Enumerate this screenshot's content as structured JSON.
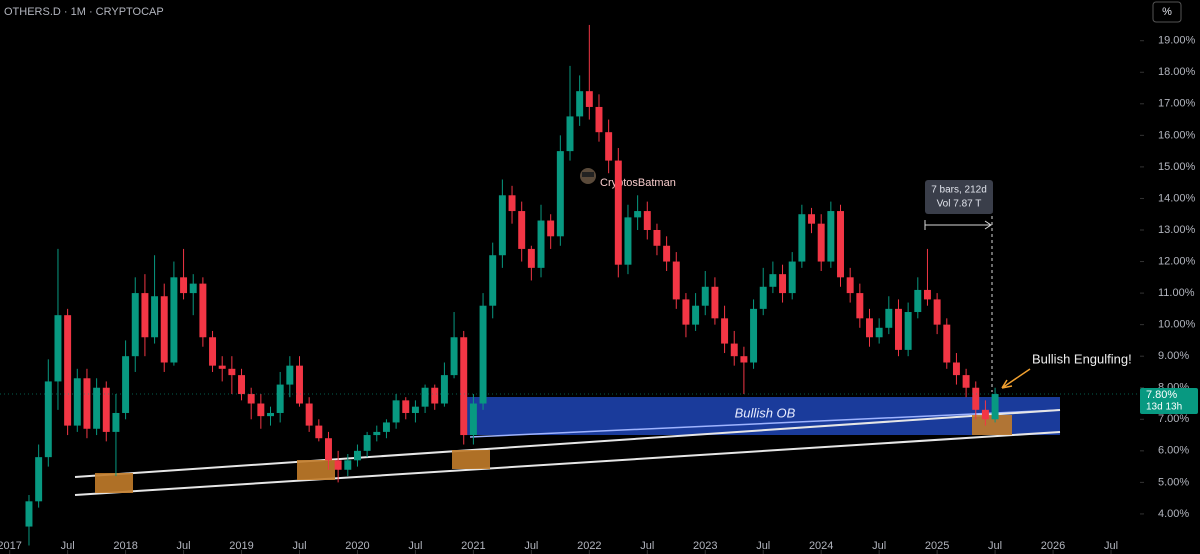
{
  "chart_data": {
    "type": "candlestick",
    "title": "OTHERS.D · 1M · CRYPTOCAP",
    "scale_button": "%",
    "up_color": "#089981",
    "down_color": "#f23645",
    "x": [
      "2017-03",
      "2017-04",
      "2017-05",
      "2017-06",
      "2017-07",
      "2017-08",
      "2017-09",
      "2017-10",
      "2017-11",
      "2017-12",
      "2018-01",
      "2018-02",
      "2018-03",
      "2018-04",
      "2018-05",
      "2018-06",
      "2018-07",
      "2018-08",
      "2018-09",
      "2018-10",
      "2018-11",
      "2018-12",
      "2019-01",
      "2019-02",
      "2019-03",
      "2019-04",
      "2019-05",
      "2019-06",
      "2019-07",
      "2019-08",
      "2019-09",
      "2019-10",
      "2019-11",
      "2019-12",
      "2020-01",
      "2020-02",
      "2020-03",
      "2020-04",
      "2020-05",
      "2020-06",
      "2020-07",
      "2020-08",
      "2020-09",
      "2020-10",
      "2020-11",
      "2020-12",
      "2021-01",
      "2021-02",
      "2021-03",
      "2021-04",
      "2021-05",
      "2021-06",
      "2021-07",
      "2021-08",
      "2021-09",
      "2021-10",
      "2021-11",
      "2021-12",
      "2022-01",
      "2022-02",
      "2022-03",
      "2022-04",
      "2022-05",
      "2022-06",
      "2022-07",
      "2022-08",
      "2022-09",
      "2022-10",
      "2022-11",
      "2022-12",
      "2023-01",
      "2023-02",
      "2023-03",
      "2023-04",
      "2023-05",
      "2023-06",
      "2023-07",
      "2023-08",
      "2023-09",
      "2023-10",
      "2023-11",
      "2023-12",
      "2024-01",
      "2024-02",
      "2024-03",
      "2024-04",
      "2024-05",
      "2024-06",
      "2024-07",
      "2024-08",
      "2024-09",
      "2024-10",
      "2024-11",
      "2024-12",
      "2025-01",
      "2025-02",
      "2025-03",
      "2025-04",
      "2025-05",
      "2025-06",
      "2025-07"
    ],
    "open": [
      3.6,
      4.4,
      5.8,
      8.2,
      10.3,
      6.8,
      8.3,
      6.7,
      8.0,
      6.6,
      7.2,
      9.0,
      11.0,
      9.6,
      10.9,
      8.8,
      11.5,
      11.0,
      11.3,
      9.6,
      8.7,
      8.6,
      8.4,
      7.8,
      7.5,
      7.1,
      7.2,
      8.1,
      8.7,
      7.5,
      6.8,
      6.4,
      5.7,
      5.4,
      5.7,
      6.0,
      6.5,
      6.6,
      6.9,
      7.6,
      7.2,
      7.4,
      8.0,
      7.5,
      8.4,
      9.6,
      6.5,
      7.5,
      10.6,
      12.2,
      14.1,
      13.6,
      12.4,
      11.8,
      13.3,
      12.8,
      15.5,
      16.6,
      17.4,
      16.9,
      16.1,
      15.2,
      11.9,
      13.4,
      13.6,
      13.0,
      12.5,
      12.0,
      10.8,
      10.0,
      10.6,
      11.2,
      10.2,
      9.4,
      9.0,
      8.8,
      10.5,
      11.2,
      11.6,
      11.0,
      12.0,
      13.5,
      13.2,
      12.0,
      13.6,
      11.5,
      11.0,
      10.2,
      9.6,
      9.9,
      10.5,
      9.2,
      10.4,
      11.1,
      10.8,
      10.0,
      8.8,
      8.4,
      8.0,
      7.3,
      7.0
    ],
    "high": [
      4.6,
      6.2,
      8.9,
      12.4,
      10.5,
      8.6,
      8.6,
      8.3,
      8.2,
      7.8,
      9.5,
      11.5,
      11.6,
      12.2,
      11.3,
      12.0,
      12.4,
      11.6,
      11.5,
      9.8,
      9.0,
      9.0,
      8.6,
      8.0,
      7.8,
      7.4,
      8.5,
      9.0,
      9.0,
      7.7,
      7.0,
      6.6,
      6.0,
      5.9,
      6.2,
      6.6,
      6.8,
      7.0,
      7.8,
      7.7,
      7.6,
      8.1,
      8.1,
      8.8,
      10.4,
      9.8,
      7.8,
      11.0,
      12.6,
      14.6,
      14.4,
      13.9,
      12.5,
      13.8,
      13.5,
      16.0,
      18.2,
      17.9,
      19.5,
      17.3,
      16.5,
      15.6,
      13.8,
      14.1,
      13.9,
      13.2,
      12.8,
      12.3,
      11.0,
      11.0,
      11.7,
      11.5,
      10.6,
      9.8,
      9.3,
      10.8,
      11.8,
      12.0,
      11.9,
      12.3,
      13.8,
      13.7,
      13.5,
      13.9,
      13.8,
      11.8,
      11.3,
      10.5,
      10.2,
      10.9,
      10.8,
      10.7,
      11.5,
      12.4,
      11.0,
      10.2,
      9.1,
      8.6,
      8.2,
      7.6,
      8.0
    ],
    "low": [
      3.0,
      4.2,
      5.5,
      7.3,
      6.5,
      6.6,
      6.4,
      6.5,
      6.3,
      5.2,
      7.0,
      8.5,
      9.0,
      9.4,
      8.5,
      8.7,
      10.8,
      10.3,
      9.3,
      8.5,
      8.2,
      7.8,
      7.6,
      7.0,
      6.7,
      6.8,
      6.9,
      7.7,
      7.4,
      6.6,
      6.3,
      5.4,
      5.0,
      5.2,
      5.5,
      5.8,
      6.3,
      6.4,
      6.7,
      7.0,
      6.9,
      7.2,
      7.3,
      7.4,
      8.3,
      6.2,
      6.2,
      7.3,
      10.2,
      11.8,
      13.2,
      12.0,
      11.4,
      11.5,
      12.4,
      12.5,
      15.2,
      16.3,
      16.5,
      15.8,
      14.8,
      11.5,
      11.6,
      13.0,
      12.7,
      12.2,
      11.7,
      10.5,
      9.6,
      9.8,
      10.3,
      10.0,
      9.1,
      8.7,
      7.8,
      8.6,
      10.3,
      11.0,
      10.7,
      10.8,
      11.8,
      12.9,
      11.7,
      11.8,
      11.2,
      10.7,
      9.9,
      9.3,
      9.4,
      9.7,
      9.0,
      9.0,
      10.2,
      10.6,
      9.7,
      8.6,
      8.1,
      7.7,
      7.0,
      6.8,
      6.9
    ],
    "close": [
      4.4,
      5.8,
      8.2,
      10.3,
      6.8,
      8.3,
      6.7,
      8.0,
      6.6,
      7.2,
      9.0,
      11.0,
      9.6,
      10.9,
      8.8,
      11.5,
      11.0,
      11.3,
      9.6,
      8.7,
      8.6,
      8.4,
      7.8,
      7.5,
      7.1,
      7.2,
      8.1,
      8.7,
      7.5,
      6.8,
      6.4,
      5.7,
      5.4,
      5.7,
      6.0,
      6.5,
      6.6,
      6.9,
      7.6,
      7.2,
      7.4,
      8.0,
      7.5,
      8.4,
      9.6,
      6.5,
      7.5,
      10.6,
      12.2,
      14.1,
      13.6,
      12.4,
      11.8,
      13.3,
      12.8,
      15.5,
      16.6,
      17.4,
      16.9,
      16.1,
      15.2,
      11.9,
      13.4,
      13.6,
      13.0,
      12.5,
      12.0,
      10.8,
      10.0,
      10.6,
      11.2,
      10.2,
      9.4,
      9.0,
      8.8,
      10.5,
      11.2,
      11.6,
      11.0,
      12.0,
      13.5,
      13.2,
      12.0,
      13.6,
      11.5,
      11.0,
      10.2,
      9.6,
      9.9,
      10.5,
      9.2,
      10.4,
      11.1,
      10.8,
      10.0,
      8.8,
      8.4,
      8.0,
      7.3,
      7.0,
      7.8
    ],
    "xlim": [
      "2016-12",
      "2026-10"
    ],
    "xticks": [
      {
        "value": "2017-01",
        "label": "2017"
      },
      {
        "value": "2017-07",
        "label": "Jul"
      },
      {
        "value": "2018-01",
        "label": "2018"
      },
      {
        "value": "2018-07",
        "label": "Jul"
      },
      {
        "value": "2019-01",
        "label": "2019"
      },
      {
        "value": "2019-07",
        "label": "Jul"
      },
      {
        "value": "2020-01",
        "label": "2020"
      },
      {
        "value": "2020-07",
        "label": "Jul"
      },
      {
        "value": "2021-01",
        "label": "2021"
      },
      {
        "value": "2021-07",
        "label": "Jul"
      },
      {
        "value": "2022-01",
        "label": "2022"
      },
      {
        "value": "2022-07",
        "label": "Jul"
      },
      {
        "value": "2023-01",
        "label": "2023"
      },
      {
        "value": "2023-07",
        "label": "Jul"
      },
      {
        "value": "2024-01",
        "label": "2024"
      },
      {
        "value": "2024-07",
        "label": "Jul"
      },
      {
        "value": "2025-01",
        "label": "2025"
      },
      {
        "value": "2025-07",
        "label": "Jul"
      },
      {
        "value": "2026-01",
        "label": "2026"
      },
      {
        "value": "2026-07",
        "label": "Jul"
      }
    ],
    "ylim": [
      2.73,
      20.29
    ],
    "yticks": [
      {
        "value": 4,
        "label": "4.00%"
      },
      {
        "value": 5,
        "label": "5.00%"
      },
      {
        "value": 6,
        "label": "6.00%"
      },
      {
        "value": 7,
        "label": "7.00%"
      },
      {
        "value": 8,
        "label": "8.00%"
      },
      {
        "value": 9,
        "label": "9.00%"
      },
      {
        "value": 10,
        "label": "10.00%"
      },
      {
        "value": 11,
        "label": "11.00%"
      },
      {
        "value": 12,
        "label": "12.00%"
      },
      {
        "value": 13,
        "label": "13.00%"
      },
      {
        "value": 14,
        "label": "14.00%"
      },
      {
        "value": 15,
        "label": "15.00%"
      },
      {
        "value": 16,
        "label": "16.00%"
      },
      {
        "value": 17,
        "label": "17.00%"
      },
      {
        "value": 18,
        "label": "18.00%"
      },
      {
        "value": 19,
        "label": "19.00%"
      }
    ],
    "last_price": {
      "value": 7.8,
      "label": "7.80%"
    },
    "countdown": "13d 13h",
    "annotations": {
      "author": "CryptosBatman",
      "measure_bars": "7 bars, 212d",
      "measure_volume": "Vol 7.87 T",
      "pattern": "Bullish Engulfing!",
      "zone": "Bullish OB"
    }
  }
}
